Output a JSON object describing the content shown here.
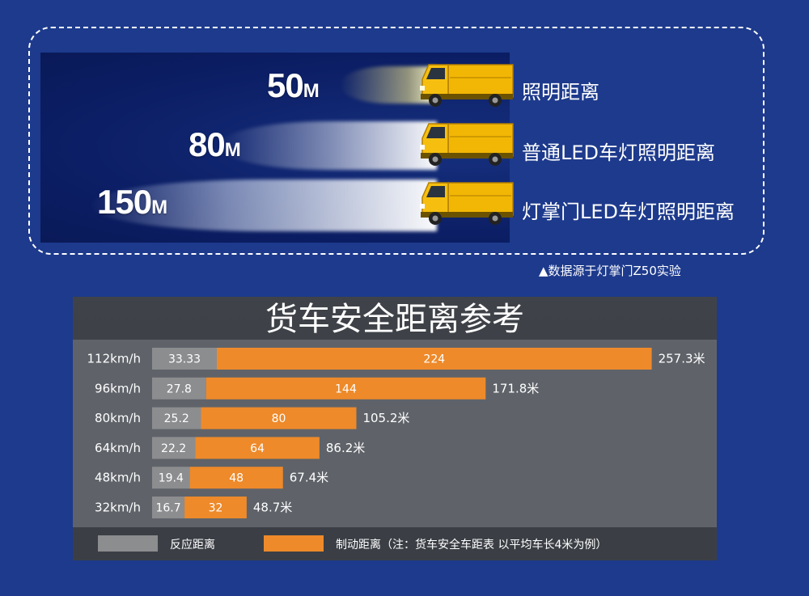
{
  "colors": {
    "background": "#1d3a8c",
    "reaction": "#8c8d8f",
    "braking": "#ee8a2a",
    "panel": "#3b3f45",
    "truck": "#f2b705"
  },
  "beams": [
    {
      "distance": "50",
      "unit": "M",
      "label": "照明距离",
      "icon": "truck-icon"
    },
    {
      "distance": "80",
      "unit": "M",
      "label": "普通LED车灯照明距离",
      "icon": "truck-icon"
    },
    {
      "distance": "150",
      "unit": "M",
      "label": "灯掌门LED车灯照明距离",
      "icon": "truck-icon"
    }
  ],
  "source_note": "▲数据源于灯掌门Z50实验",
  "chart_data": {
    "type": "bar",
    "stacked": true,
    "orientation": "horizontal",
    "title": "货车安全距离参考",
    "categories": [
      "112km/h",
      "96km/h",
      "80km/h",
      "64km/h",
      "48km/h",
      "32km/h"
    ],
    "series": [
      {
        "name": "反应距离",
        "values": [
          33.33,
          27.8,
          25.2,
          22.2,
          19.4,
          16.7
        ],
        "labels": [
          "33.33",
          "27.8",
          "25.2",
          "22.2",
          "19.4",
          "16.7"
        ]
      },
      {
        "name": "制动距离（注：货车安全车距表 以平均车长4米为例）",
        "values": [
          224,
          144,
          80,
          64,
          48,
          32
        ],
        "labels": [
          "224",
          "144",
          "80",
          "64",
          "48",
          "32"
        ]
      }
    ],
    "totals": [
      "257.3米",
      "171.8米",
      "105.2米",
      "86.2米",
      "67.4米",
      "48.7米"
    ]
  }
}
